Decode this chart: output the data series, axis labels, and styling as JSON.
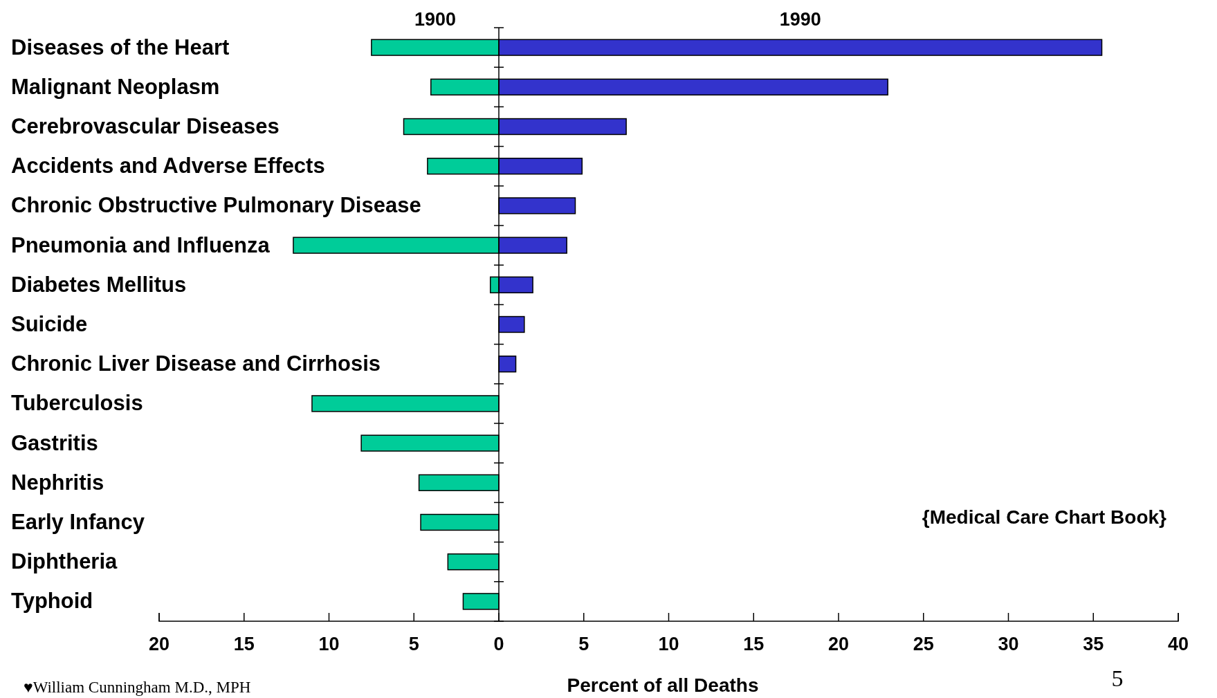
{
  "chart_data": {
    "type": "bar",
    "orientation": "horizontal",
    "stacked": true,
    "xlabel": "Percent of all Deaths",
    "categories": [
      "Diseases of the Heart",
      "Malignant Neoplasm",
      "Cerebrovascular Diseases",
      "Accidents and Adverse Effects",
      "Chronic Obstructive Pulmonary Disease",
      "Pneumonia and Influenza",
      "Diabetes Mellitus",
      "Suicide",
      "Chronic Liver Disease and Cirrhosis",
      "Tuberculosis",
      "Gastritis",
      "Nephritis",
      "Early Infancy",
      "Diphtheria",
      "Typhoid"
    ],
    "series": [
      {
        "name": "1900",
        "color": "#00cc99",
        "values": [
          -7.5,
          -4.0,
          -5.6,
          -4.2,
          null,
          -12.1,
          -0.5,
          null,
          null,
          -11.0,
          -8.1,
          -4.7,
          -4.6,
          -3.0,
          -2.1
        ]
      },
      {
        "name": "1990",
        "color": "#3333cc",
        "values": [
          35.5,
          22.9,
          7.5,
          4.9,
          4.5,
          4.0,
          2.0,
          1.5,
          1.0,
          null,
          null,
          null,
          null,
          null,
          null
        ]
      }
    ],
    "xlim": [
      -20,
      40
    ],
    "xticks": [
      {
        "value": -20,
        "label": "20"
      },
      {
        "value": -15,
        "label": "15"
      },
      {
        "value": -10,
        "label": "10"
      },
      {
        "value": -5,
        "label": "5"
      },
      0,
      5,
      10,
      15,
      20,
      25,
      30,
      35,
      40
    ],
    "legend": "top",
    "annotations": [
      "{Medical Care Chart Book}",
      "♥William Cunningham M.D., MPH",
      "5"
    ]
  }
}
